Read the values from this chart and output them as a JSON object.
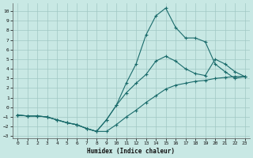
{
  "background_color": "#c8e8e4",
  "grid_color": "#a0c8c4",
  "line_color": "#1a6b6b",
  "xlabel": "Humidex (Indice chaleur)",
  "xlim": [
    -0.5,
    23.5
  ],
  "ylim": [
    -3.2,
    10.8
  ],
  "xticks": [
    0,
    1,
    2,
    3,
    4,
    5,
    6,
    7,
    8,
    9,
    10,
    11,
    12,
    13,
    14,
    15,
    16,
    17,
    18,
    19,
    20,
    21,
    22,
    23
  ],
  "yticks": [
    -3,
    -2,
    -1,
    0,
    1,
    2,
    3,
    4,
    5,
    6,
    7,
    8,
    9,
    10
  ],
  "line1_x": [
    0,
    1,
    2,
    3,
    4,
    5,
    6,
    7,
    8,
    9,
    10,
    11,
    12,
    13,
    14,
    15,
    16,
    17,
    18,
    19,
    20,
    21,
    22,
    23
  ],
  "line1_y": [
    -0.8,
    -0.9,
    -0.9,
    -1.0,
    -1.3,
    -1.6,
    -1.8,
    -2.2,
    -2.5,
    -2.5,
    -1.8,
    -1.0,
    -0.3,
    0.5,
    1.2,
    1.9,
    2.3,
    2.5,
    2.7,
    2.8,
    3.0,
    3.1,
    3.2,
    3.2
  ],
  "line2_x": [
    0,
    1,
    2,
    3,
    4,
    5,
    6,
    7,
    8,
    9,
    10,
    11,
    12,
    13,
    14,
    15,
    16,
    17,
    18,
    19,
    20,
    21,
    22,
    23
  ],
  "line2_y": [
    -0.8,
    -0.9,
    -0.9,
    -1.0,
    -1.3,
    -1.6,
    -1.8,
    -2.2,
    -2.5,
    -1.3,
    0.2,
    1.5,
    2.5,
    3.4,
    4.8,
    5.3,
    4.8,
    4.0,
    3.5,
    3.3,
    5.0,
    4.5,
    3.7,
    3.2
  ],
  "line3_x": [
    0,
    1,
    2,
    3,
    4,
    5,
    6,
    7,
    8,
    9,
    10,
    11,
    12,
    13,
    14,
    15,
    16,
    17,
    18,
    19,
    20,
    21,
    22,
    23
  ],
  "line3_y": [
    -0.8,
    -0.9,
    -0.9,
    -1.0,
    -1.3,
    -1.6,
    -1.8,
    -2.2,
    -2.5,
    -1.3,
    0.2,
    2.5,
    4.5,
    7.5,
    9.5,
    10.3,
    8.3,
    7.2,
    7.2,
    6.8,
    4.5,
    3.7,
    3.0,
    3.2
  ]
}
